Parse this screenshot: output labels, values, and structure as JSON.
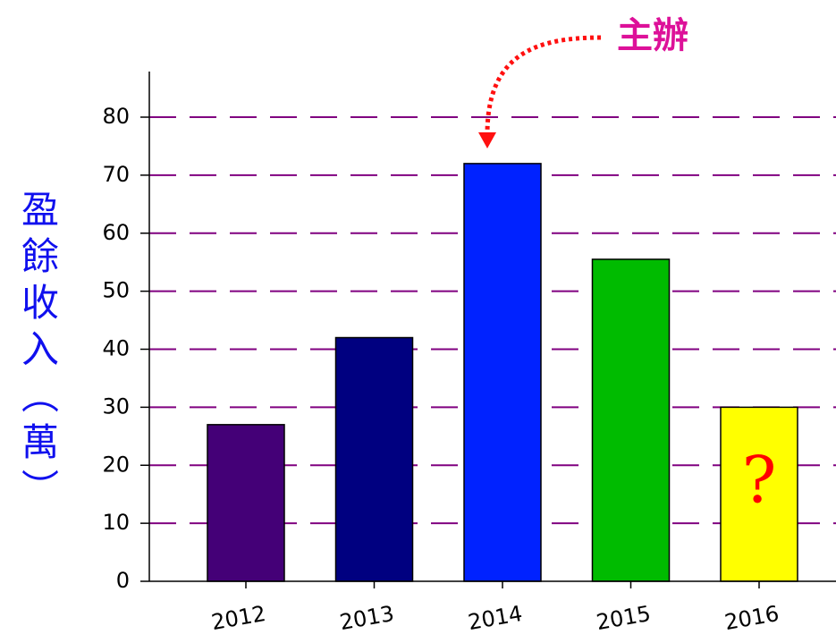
{
  "chart_data": {
    "type": "bar",
    "y_label": "盈餘收入（萬）",
    "categories": [
      "2012",
      "2013",
      "2014",
      "2015",
      "2016"
    ],
    "values": [
      27,
      42,
      72,
      55.5,
      30
    ],
    "colors": [
      "#440077",
      "#000080",
      "#0022ff",
      "#00bb00",
      "#ffff00"
    ],
    "ylim": [
      0,
      80
    ],
    "yticks": [
      0,
      10,
      20,
      30,
      40,
      50,
      60,
      70,
      80
    ],
    "grid": true,
    "grid_color": "#800080",
    "annotations": [
      {
        "text": "主辦",
        "category": 2
      },
      {
        "text": "?",
        "category": 4
      }
    ]
  }
}
